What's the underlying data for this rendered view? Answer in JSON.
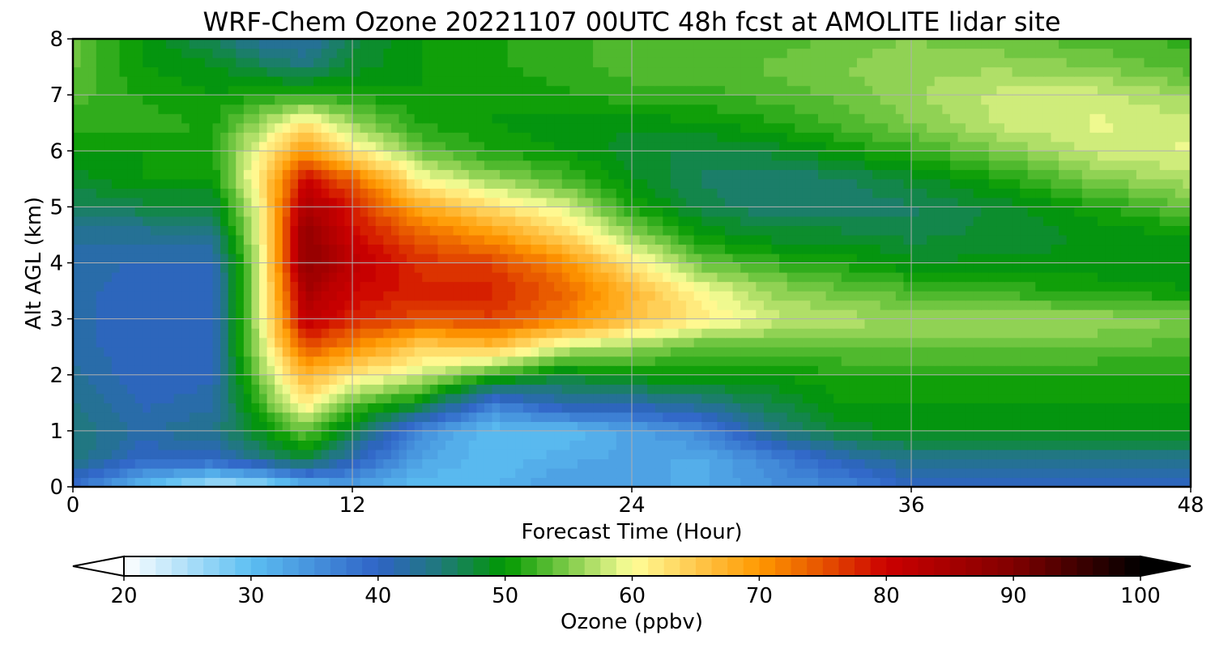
{
  "chart_data": {
    "type": "heatmap",
    "title": "WRF-Chem Ozone  20221107 00UTC 48h fcst at AMOLITE lidar site",
    "xlabel": "Forecast Time (Hour)",
    "ylabel": "Alt AGL (km)",
    "xlim": [
      0,
      48
    ],
    "ylim": [
      0,
      8
    ],
    "xticks": [
      "0",
      "12",
      "24",
      "36",
      "48"
    ],
    "yticks": [
      "0",
      "1",
      "2",
      "3",
      "4",
      "5",
      "6",
      "7",
      "8"
    ],
    "grid": true,
    "x_hours": [
      0,
      3,
      6,
      8,
      10,
      12,
      15,
      18,
      21,
      24,
      27,
      30,
      33,
      36,
      40,
      44,
      48
    ],
    "y_km": [
      0,
      0.5,
      1,
      1.5,
      2,
      2.5,
      3,
      3.5,
      4,
      4.5,
      5,
      5.5,
      6,
      6.5,
      7,
      7.5,
      8
    ],
    "values_ppbv": [
      [
        38,
        30,
        24,
        25,
        30,
        33,
        30,
        31,
        34,
        33,
        32,
        35,
        36,
        40,
        40,
        40,
        40
      ],
      [
        45,
        40,
        40,
        44,
        48,
        41,
        33,
        30,
        32,
        33,
        32,
        36,
        41,
        44,
        44,
        44,
        44
      ],
      [
        45,
        42,
        44,
        49,
        54,
        47,
        35,
        30,
        30,
        33,
        36,
        44,
        48,
        49,
        49,
        49,
        49
      ],
      [
        44,
        41,
        42,
        52,
        62,
        54,
        49,
        37,
        42,
        42,
        44,
        47,
        50,
        50,
        50,
        50,
        50
      ],
      [
        43,
        40,
        41,
        55,
        67,
        62,
        58,
        52,
        48,
        50,
        50,
        50,
        51,
        51,
        51,
        51,
        51
      ],
      [
        42,
        40,
        41,
        57,
        75,
        71,
        64,
        66,
        58,
        56,
        53,
        54,
        54,
        54,
        54,
        54,
        53
      ],
      [
        42,
        40,
        40,
        58,
        82,
        78,
        75,
        76,
        72,
        66,
        62,
        58,
        57,
        56,
        56,
        56,
        55
      ],
      [
        42,
        40,
        40,
        58,
        85,
        80,
        78,
        78,
        74,
        67,
        60,
        56,
        54,
        53,
        52,
        51,
        50
      ],
      [
        42,
        41,
        41,
        58,
        88,
        82,
        77,
        76,
        71,
        62,
        54,
        52,
        51,
        49,
        49,
        49,
        49
      ],
      [
        43,
        43,
        44,
        59,
        88,
        80,
        74,
        70,
        64,
        56,
        50,
        48,
        48,
        47,
        48,
        49,
        50
      ],
      [
        46,
        47,
        47,
        60,
        85,
        78,
        68,
        63,
        59,
        51,
        47,
        45,
        45,
        46,
        48,
        51,
        54
      ],
      [
        48,
        50,
        50,
        62,
        80,
        74,
        60,
        56,
        53,
        49,
        46,
        45,
        46,
        48,
        51,
        55,
        57
      ],
      [
        50,
        50,
        51,
        60,
        70,
        62,
        54,
        51,
        50,
        48,
        47,
        48,
        50,
        52,
        55,
        58,
        59
      ],
      [
        52,
        52,
        51,
        56,
        62,
        56,
        51,
        50,
        49,
        49,
        50,
        51,
        53,
        55,
        58,
        59,
        58
      ],
      [
        53,
        51,
        50,
        51,
        52,
        51,
        50,
        50,
        51,
        52,
        52,
        53,
        54,
        56,
        58,
        58,
        56
      ],
      [
        54,
        50,
        49,
        47,
        45,
        48,
        50,
        51,
        52,
        53,
        53,
        54,
        55,
        56,
        56,
        55,
        53
      ],
      [
        54,
        50,
        46,
        43,
        42,
        47,
        50,
        51,
        52,
        53,
        53,
        53,
        54,
        55,
        54,
        53,
        52
      ]
    ],
    "colorbar": {
      "label": "Ozone  (ppbv)",
      "min": 20,
      "max": 100,
      "ticks": [
        "20",
        "30",
        "40",
        "50",
        "60",
        "70",
        "80",
        "90",
        "100"
      ],
      "extend": "both",
      "colors": [
        {
          "v": 20,
          "c": "#ffffff"
        },
        {
          "v": 30,
          "c": "#5cbff2"
        },
        {
          "v": 40,
          "c": "#2f63c6"
        },
        {
          "v": 45,
          "c": "#1f7a78"
        },
        {
          "v": 50,
          "c": "#009900"
        },
        {
          "v": 55,
          "c": "#80cc4a"
        },
        {
          "v": 60,
          "c": "#ffff99"
        },
        {
          "v": 65,
          "c": "#ffc84d"
        },
        {
          "v": 70,
          "c": "#ff9900"
        },
        {
          "v": 75,
          "c": "#e65200"
        },
        {
          "v": 80,
          "c": "#cc0000"
        },
        {
          "v": 90,
          "c": "#800000"
        },
        {
          "v": 100,
          "c": "#000000"
        }
      ]
    }
  }
}
